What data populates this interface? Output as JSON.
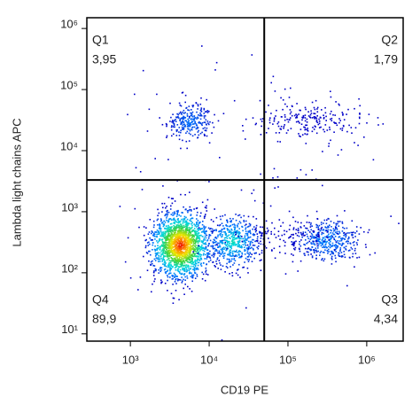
{
  "chart_data": {
    "type": "density",
    "x_label": "CD19 PE",
    "y_label": "Lambda light chains APC",
    "xscale": "log",
    "yscale": "log",
    "xlim": [
      280,
      2900000
    ],
    "ylim": [
      7.6,
      1500000
    ],
    "xticks": [
      {
        "value": 1000,
        "label": "10³"
      },
      {
        "value": 10000,
        "label": "10⁴"
      },
      {
        "value": 100000,
        "label": "10⁵"
      },
      {
        "value": 1000000,
        "label": "10⁶"
      }
    ],
    "yticks": [
      {
        "value": 10,
        "label": "10¹"
      },
      {
        "value": 100,
        "label": "10²"
      },
      {
        "value": 1000,
        "label": "10³"
      },
      {
        "value": 10000,
        "label": "10⁴"
      },
      {
        "value": 100000,
        "label": "10⁵"
      },
      {
        "value": 1000000,
        "label": "10⁶"
      }
    ],
    "x_gate": 50000,
    "y_gate": 3300,
    "quadrants": {
      "names": [
        "Q1",
        "Q2",
        "Q3",
        "Q4"
      ],
      "values": [
        3.95,
        1.79,
        4.34,
        89.9
      ],
      "value_labels": [
        "3,95",
        "1,79",
        "4,34",
        "89,9"
      ]
    }
  }
}
